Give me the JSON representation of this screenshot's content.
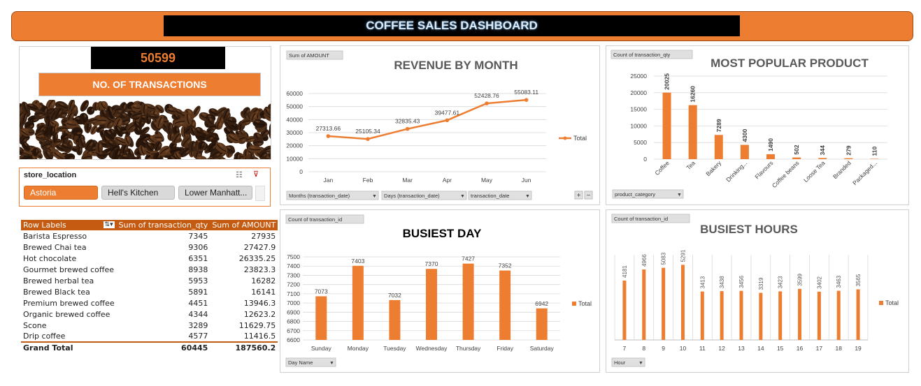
{
  "header": {
    "title": "COFFEE SALES DASHBOARD"
  },
  "kpi": {
    "value": "50599",
    "label": "NO. OF TRANSACTIONS"
  },
  "slicer": {
    "title": "store_location",
    "items": [
      "Astoria",
      "Hell's Kitchen",
      "Lower Manhatt..."
    ]
  },
  "pivot": {
    "headers": [
      "Row Labels",
      "Sum of transaction_qty",
      "Sum of AMOUNT"
    ],
    "rows": [
      [
        "Barista Espresso",
        "7345",
        "27935"
      ],
      [
        "Brewed Chai tea",
        "9306",
        "27427.9"
      ],
      [
        "Hot chocolate",
        "6351",
        "26335.25"
      ],
      [
        "Gourmet brewed coffee",
        "8938",
        "23823.3"
      ],
      [
        "Brewed herbal tea",
        "5953",
        "16282"
      ],
      [
        "Brewed Black tea",
        "5891",
        "16141"
      ],
      [
        "Premium brewed coffee",
        "4451",
        "13946.3"
      ],
      [
        "Organic brewed coffee",
        "4344",
        "12623.2"
      ],
      [
        "Scone",
        "3289",
        "11629.75"
      ],
      [
        "Drip coffee",
        "4577",
        "11416.5"
      ]
    ],
    "total": [
      "Grand Total",
      "60445",
      "187560.2"
    ]
  },
  "colors": {
    "accent": "#ed7d31",
    "dark_accent": "#c55a11"
  },
  "chart_data": [
    {
      "type": "line",
      "title": "REVENUE BY MONTH",
      "field_chip": "Sum of AMOUNT",
      "categories": [
        "Jan",
        "Feb",
        "Mar",
        "Apr",
        "May",
        "Jun"
      ],
      "series": [
        {
          "name": "Total",
          "values": [
            27313.66,
            25105.34,
            32835.43,
            39477.61,
            52428.76,
            55083.11
          ]
        }
      ],
      "labels": [
        "27313.66",
        "25105.34",
        "32835.43",
        "39477.61",
        "52428.76",
        "55083.11"
      ],
      "ylim": [
        0,
        60000
      ],
      "yticks": [
        0,
        10000,
        20000,
        30000,
        40000,
        50000,
        60000
      ],
      "filters": [
        "Months (transaction_date)",
        "Days (transaction_date)",
        "transaction_date"
      ],
      "legend": "right",
      "grid": true
    },
    {
      "type": "bar",
      "title": "MOST POPULAR PRODUCT",
      "field_chip": "Count of transaction_qty",
      "categories": [
        "Coffee",
        "Tea",
        "Bakery",
        "Drinking...",
        "Flavours",
        "Coffee beans",
        "Loose Tea",
        "Branded",
        "Packaged..."
      ],
      "values": [
        20025,
        16260,
        7289,
        4300,
        1490,
        502,
        344,
        279,
        110
      ],
      "ylim": [
        0,
        25000
      ],
      "yticks": [
        0,
        5000,
        10000,
        15000,
        20000,
        25000
      ],
      "filters": [
        "product_category"
      ],
      "grid": true
    },
    {
      "type": "bar",
      "title": "BUSIEST DAY",
      "field_chip": "Count of transaction_id",
      "categories": [
        "Sunday",
        "Monday",
        "Tuesday",
        "Wednesday",
        "Thursday",
        "Friday",
        "Saturday"
      ],
      "series": [
        {
          "name": "Total",
          "values": [
            7073,
            7403,
            7032,
            7370,
            7427,
            7352,
            6942
          ]
        }
      ],
      "ylim": [
        6600,
        7500
      ],
      "yticks": [
        6600,
        6700,
        6800,
        6900,
        7000,
        7100,
        7200,
        7300,
        7400,
        7500
      ],
      "filters": [
        "Day Name"
      ],
      "legend": "right",
      "grid": true
    },
    {
      "type": "bar",
      "title": "BUSIEST HOURS",
      "field_chip": "Count of transaction_id",
      "categories": [
        "7",
        "8",
        "9",
        "10",
        "11",
        "12",
        "13",
        "14",
        "15",
        "16",
        "17",
        "18",
        "19"
      ],
      "series": [
        {
          "name": "Total",
          "values": [
            4181,
            4966,
            5083,
            5291,
            3413,
            3438,
            3456,
            3319,
            3423,
            3599,
            3402,
            3463,
            3565
          ]
        }
      ],
      "ylim": [
        0,
        6000
      ],
      "filters": [
        "Hour"
      ],
      "legend": "right",
      "grid": true
    }
  ]
}
